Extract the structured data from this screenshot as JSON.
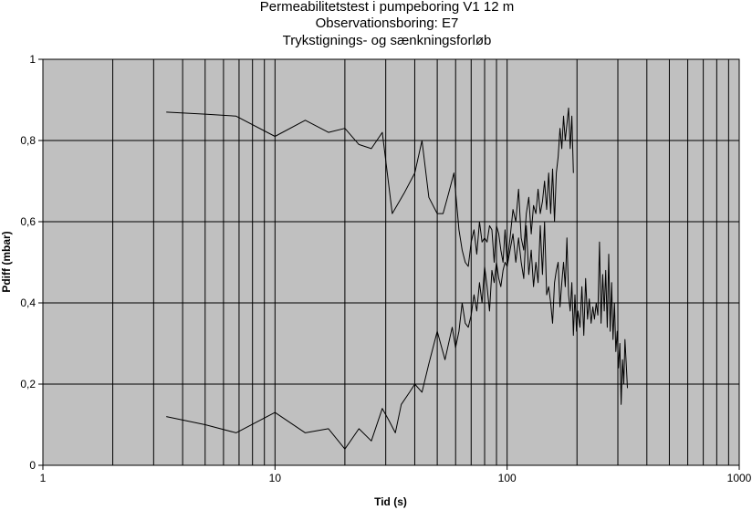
{
  "chart_data": {
    "type": "line",
    "title_lines": [
      "Permeabilitetstest i pumpeboring V1 12 m",
      "Observationsboring: E7",
      "Trykstignings- og sænkningsforløb"
    ],
    "xlabel": "Tid (s)",
    "ylabel": "Pdiff (mbar)",
    "x_scale": "log",
    "xlim": [
      1,
      1000
    ],
    "ylim": [
      0,
      1
    ],
    "x_ticks": [
      1,
      10,
      100,
      1000
    ],
    "x_tick_labels": [
      "1",
      "10",
      "100",
      "1000"
    ],
    "y_ticks": [
      0,
      0.2,
      0.4,
      0.6,
      0.8,
      1
    ],
    "y_tick_labels": [
      "0",
      "0,2",
      "0,4",
      "0,6",
      "0,8",
      "1"
    ],
    "grid": true,
    "legend": "none",
    "colors": {
      "plot_background": "#c0c0c0",
      "line": "#000000",
      "grid": "#000000"
    },
    "series": [
      {
        "x": [
          3.4,
          5,
          6.8,
          10,
          13.5,
          17,
          20,
          23,
          26,
          29,
          32,
          36,
          40,
          43,
          46,
          50,
          53,
          56,
          59,
          62,
          64,
          66,
          68,
          70,
          72,
          74,
          76,
          78,
          80,
          82,
          84,
          86,
          88,
          90,
          92,
          94,
          96,
          98,
          100,
          103,
          106,
          109,
          112,
          115,
          118,
          121,
          124,
          127,
          130,
          133,
          136,
          139,
          142,
          145,
          148,
          151,
          154,
          157,
          160,
          163,
          166,
          169,
          172,
          175,
          178,
          181,
          184,
          187,
          190,
          193
        ],
        "y": [
          0.87,
          0.865,
          0.86,
          0.81,
          0.85,
          0.82,
          0.83,
          0.79,
          0.78,
          0.82,
          0.62,
          0.67,
          0.72,
          0.8,
          0.66,
          0.62,
          0.62,
          0.67,
          0.72,
          0.58,
          0.53,
          0.5,
          0.49,
          0.55,
          0.58,
          0.52,
          0.6,
          0.55,
          0.56,
          0.55,
          0.59,
          0.58,
          0.5,
          0.59,
          0.57,
          0.53,
          0.5,
          0.58,
          0.5,
          0.56,
          0.63,
          0.6,
          0.68,
          0.56,
          0.53,
          0.62,
          0.66,
          0.57,
          0.64,
          0.62,
          0.68,
          0.62,
          0.65,
          0.7,
          0.63,
          0.72,
          0.62,
          0.73,
          0.6,
          0.72,
          0.76,
          0.83,
          0.78,
          0.86,
          0.8,
          0.84,
          0.88,
          0.78,
          0.86,
          0.72
        ]
      },
      {
        "x": [
          3.4,
          5,
          6.8,
          10,
          13.5,
          17,
          20,
          23,
          26,
          29,
          31,
          33,
          35,
          38,
          40,
          43,
          46,
          50,
          54,
          58,
          60,
          62,
          64,
          66,
          68,
          70,
          72,
          74,
          76,
          78,
          80,
          82,
          84,
          86,
          88,
          90,
          92,
          94,
          96,
          98,
          100,
          103,
          106,
          109,
          112,
          115,
          118,
          121,
          124,
          127,
          130,
          133,
          136,
          139,
          142,
          145,
          148,
          151,
          154,
          157,
          160,
          163,
          166,
          169,
          172,
          175,
          178,
          181,
          184,
          187,
          190,
          193,
          196,
          199,
          202,
          206,
          210,
          214,
          218,
          222,
          226,
          230,
          234,
          238,
          242,
          246,
          250,
          254,
          258,
          262,
          266,
          270,
          274,
          278,
          282,
          286,
          290,
          294,
          298,
          302,
          306,
          310,
          314,
          318,
          322,
          326,
          330
        ],
        "y": [
          0.12,
          0.1,
          0.08,
          0.13,
          0.08,
          0.09,
          0.04,
          0.09,
          0.06,
          0.14,
          0.11,
          0.08,
          0.15,
          0.18,
          0.2,
          0.18,
          0.25,
          0.33,
          0.26,
          0.34,
          0.29,
          0.33,
          0.4,
          0.35,
          0.34,
          0.37,
          0.42,
          0.38,
          0.45,
          0.4,
          0.49,
          0.44,
          0.38,
          0.48,
          0.45,
          0.5,
          0.46,
          0.44,
          0.48,
          0.5,
          0.49,
          0.53,
          0.57,
          0.5,
          0.56,
          0.5,
          0.46,
          0.59,
          0.47,
          0.53,
          0.44,
          0.5,
          0.45,
          0.59,
          0.47,
          0.6,
          0.42,
          0.44,
          0.4,
          0.35,
          0.45,
          0.48,
          0.5,
          0.39,
          0.45,
          0.5,
          0.44,
          0.56,
          0.42,
          0.38,
          0.45,
          0.32,
          0.42,
          0.33,
          0.38,
          0.34,
          0.44,
          0.32,
          0.46,
          0.36,
          0.41,
          0.35,
          0.39,
          0.36,
          0.4,
          0.37,
          0.55,
          0.35,
          0.47,
          0.38,
          0.48,
          0.34,
          0.52,
          0.33,
          0.45,
          0.31,
          0.4,
          0.28,
          0.33,
          0.24,
          0.3,
          0.15,
          0.26,
          0.2,
          0.31,
          0.25,
          0.19
        ]
      }
    ]
  }
}
